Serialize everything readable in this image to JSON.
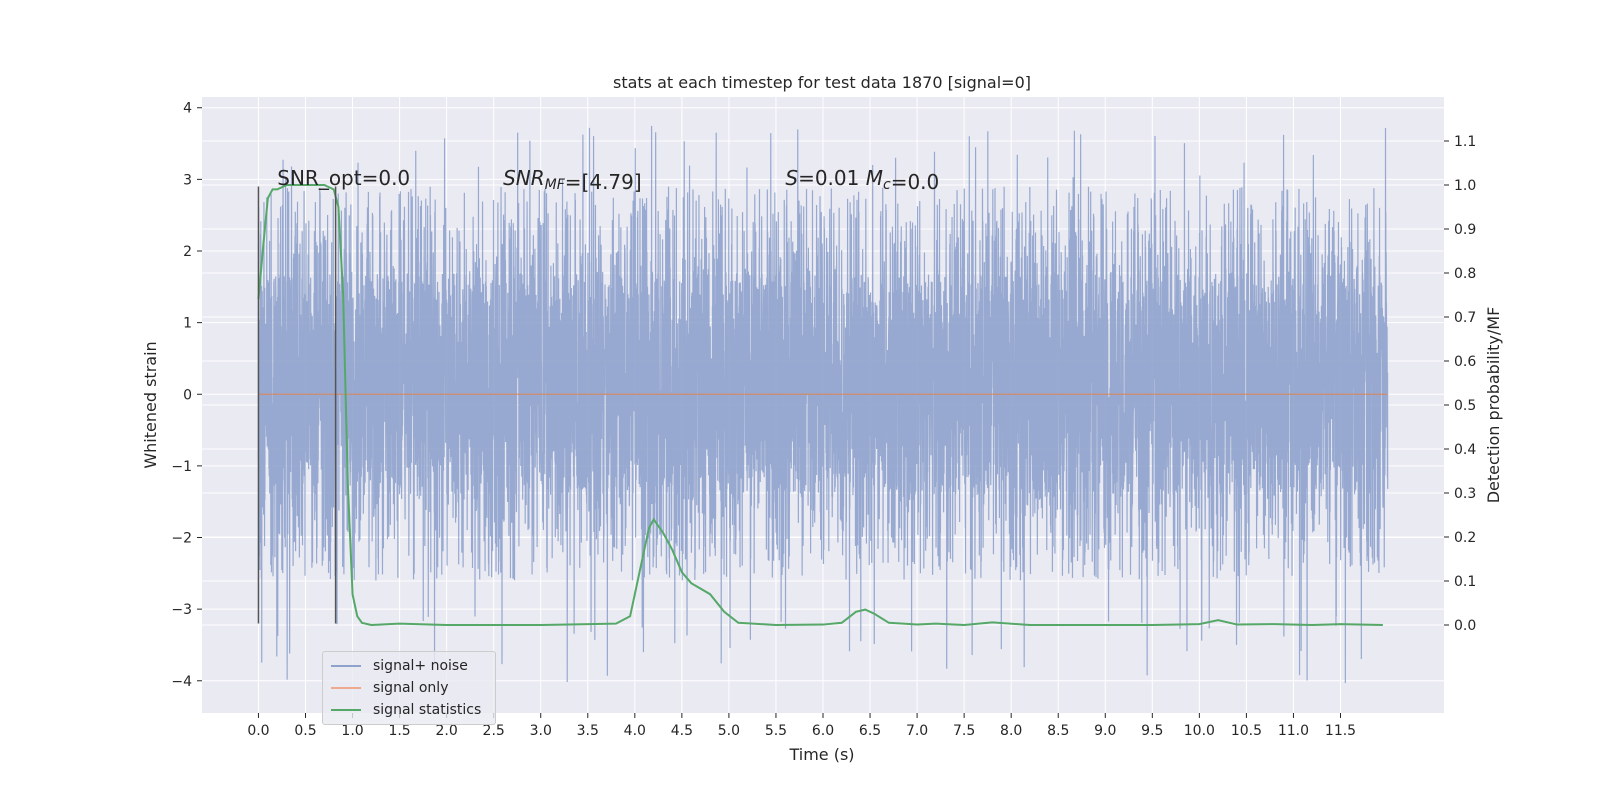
{
  "chart_data": {
    "type": "line",
    "title": "stats at each timestep for test data 1870 [signal=0]",
    "xlabel": "Time (s)",
    "ylabel": "Whitened strain",
    "y2label": "Detection probability/MF",
    "xlim": [
      -0.6,
      12.6
    ],
    "ylim": [
      -4.45,
      4.15
    ],
    "y2lim": [
      -0.2,
      1.2
    ],
    "x_ticks": [
      "0.0",
      "0.5",
      "1.0",
      "1.5",
      "2.0",
      "2.5",
      "3.0",
      "3.5",
      "4.0",
      "4.5",
      "5.0",
      "5.5",
      "6.0",
      "6.5",
      "7.0",
      "7.5",
      "8.0",
      "8.5",
      "9.0",
      "9.5",
      "10.0",
      "10.5",
      "11.0",
      "11.5"
    ],
    "y_ticks": [
      "4",
      "3",
      "2",
      "1",
      "0",
      "−1",
      "−2",
      "−3",
      "−4"
    ],
    "y2_ticks": [
      "1.1",
      "1.0",
      "0.9",
      "0.8",
      "0.7",
      "0.6",
      "0.5",
      "0.4",
      "0.3",
      "0.2",
      "0.1",
      "0.0"
    ],
    "grid": true,
    "legend_position": "lower-left",
    "colors": {
      "noise": "#8ea2cc",
      "signal": "#dd8452",
      "stats": "#55a868",
      "marker": "#555555",
      "background": "#eaeaf2",
      "grid": "#ffffff"
    },
    "series": [
      {
        "name": "signal+ noise",
        "x_range": [
          0.0,
          12.0
        ],
        "envelope": {
          "typical_low": -1.4,
          "typical_high": 1.7,
          "min": -4.1,
          "max": 3.75
        }
      },
      {
        "name": "signal only",
        "x_range": [
          0.0,
          12.0
        ],
        "values": [
          0.0
        ]
      },
      {
        "name": "signal statistics",
        "axis": "right",
        "x": [
          0.0,
          0.05,
          0.1,
          0.15,
          0.2,
          0.3,
          0.5,
          0.7,
          0.8,
          0.85,
          0.9,
          0.95,
          1.0,
          1.05,
          1.1,
          1.2,
          1.5,
          2.0,
          3.0,
          3.8,
          3.95,
          4.05,
          4.15,
          4.2,
          4.3,
          4.4,
          4.5,
          4.6,
          4.8,
          4.95,
          5.1,
          5.5,
          6.0,
          6.2,
          6.35,
          6.45,
          6.55,
          6.7,
          7.0,
          7.2,
          7.5,
          7.8,
          8.2,
          9.0,
          9.5,
          10.0,
          10.2,
          10.4,
          10.8,
          11.2,
          11.5,
          11.95
        ],
        "values": [
          0.74,
          0.86,
          0.97,
          0.99,
          0.99,
          1.0,
          1.0,
          1.0,
          0.99,
          0.95,
          0.75,
          0.32,
          0.07,
          0.02,
          0.005,
          0.0,
          0.003,
          0.0,
          0.0,
          0.003,
          0.02,
          0.12,
          0.22,
          0.24,
          0.21,
          0.17,
          0.12,
          0.095,
          0.07,
          0.03,
          0.005,
          0.0,
          0.001,
          0.005,
          0.03,
          0.035,
          0.025,
          0.005,
          0.001,
          0.003,
          0.0,
          0.006,
          0.0,
          0.0,
          0.0,
          0.002,
          0.011,
          0.001,
          0.002,
          0.0,
          0.002,
          0.0
        ]
      }
    ],
    "vertical_markers": [
      0.0,
      0.82
    ],
    "annotations": [
      {
        "x": 0.2,
        "y2": 1.0,
        "parts": [
          {
            "text": "SNR_opt=0.0",
            "italic": false
          }
        ]
      },
      {
        "x": 2.6,
        "y2": 1.0,
        "parts": [
          {
            "text": "SNR",
            "italic": true
          },
          {
            "text": "MF",
            "italic": true,
            "sub": true
          },
          {
            "text": "=[4.79]",
            "italic": false
          }
        ]
      },
      {
        "x": 5.6,
        "y2": 1.0,
        "parts": [
          {
            "text": "S",
            "italic": true
          },
          {
            "text": "=0.01   ",
            "italic": false
          },
          {
            "text": "M",
            "italic": true
          },
          {
            "text": "c",
            "italic": true,
            "sub": true
          },
          {
            "text": "=0.0",
            "italic": false
          }
        ]
      }
    ]
  }
}
